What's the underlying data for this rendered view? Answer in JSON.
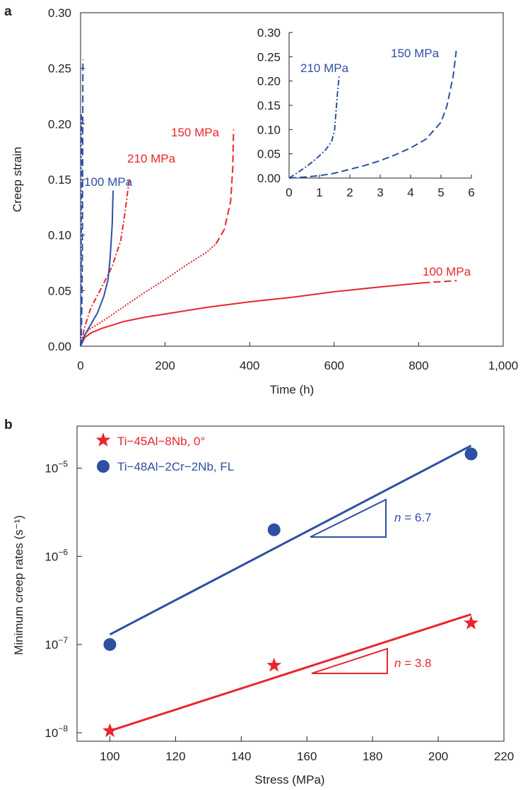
{
  "colors": {
    "red": "#e8262d",
    "blue": "#2e4fa3",
    "axis": "#231f20"
  },
  "chart_data": [
    {
      "panel": "a",
      "type": "line",
      "xlabel": "Time (h)",
      "ylabel": "Creep strain",
      "xlim": [
        0,
        1000
      ],
      "ylim": [
        0,
        0.3
      ],
      "xticks": [
        0,
        200,
        400,
        600,
        800,
        1000
      ],
      "xtick_labels": [
        "0",
        "200",
        "400",
        "600",
        "800",
        "1,000"
      ],
      "yticks": [
        0,
        0.05,
        0.1,
        0.15,
        0.2,
        0.25,
        0.3
      ],
      "ytick_labels": [
        "0.00",
        "0.05",
        "0.10",
        "0.15",
        "0.20",
        "0.25",
        "0.30"
      ],
      "grid": false,
      "series": [
        {
          "name": "100 MPa",
          "color": "red",
          "style": "solid",
          "x": [
            0,
            10,
            25,
            50,
            100,
            150,
            200,
            300,
            400,
            500,
            600,
            700,
            810
          ],
          "y": [
            0,
            0.008,
            0.012,
            0.016,
            0.022,
            0.026,
            0.029,
            0.035,
            0.04,
            0.044,
            0.049,
            0.053,
            0.057
          ]
        },
        {
          "name": "100 MPa",
          "color": "red",
          "style": "dashed",
          "x": [
            810,
            850,
            890
          ],
          "y": [
            0.057,
            0.058,
            0.059
          ]
        },
        {
          "name": "150 MPa",
          "color": "red",
          "style": "dotted",
          "x": [
            0,
            5,
            20,
            50,
            100,
            150,
            200,
            250,
            300,
            320
          ],
          "y": [
            0,
            0.008,
            0.015,
            0.022,
            0.035,
            0.048,
            0.06,
            0.073,
            0.085,
            0.092
          ]
        },
        {
          "name": "150 MPa",
          "color": "red",
          "style": "dashed",
          "x": [
            320,
            340,
            355,
            360,
            362
          ],
          "y": [
            0.092,
            0.105,
            0.13,
            0.16,
            0.195
          ]
        },
        {
          "name": "210 MPa",
          "color": "red",
          "style": "dashdot",
          "x": [
            0,
            10,
            25,
            50,
            75,
            95,
            105,
            115
          ],
          "y": [
            0,
            0.018,
            0.035,
            0.053,
            0.072,
            0.095,
            0.12,
            0.15
          ]
        },
        {
          "name": "100 MPa",
          "color": "blue",
          "style": "solid",
          "x": [
            0,
            10,
            25,
            40,
            55,
            65,
            70,
            75,
            77
          ],
          "y": [
            0,
            0.01,
            0.02,
            0.03,
            0.045,
            0.06,
            0.08,
            0.11,
            0.14
          ]
        },
        {
          "name": "150 MPa",
          "color": "blue",
          "style": "dashed",
          "x": [
            0,
            1,
            2,
            3,
            4,
            4.5,
            5,
            5.5
          ],
          "y": [
            0,
            0.005,
            0.015,
            0.035,
            0.07,
            0.11,
            0.18,
            0.258
          ]
        },
        {
          "name": "210 MPa",
          "color": "blue",
          "style": "dashdot",
          "x": [
            0,
            0.5,
            1,
            1.4,
            1.5,
            1.6,
            1.65
          ],
          "y": [
            0,
            0.025,
            0.05,
            0.08,
            0.12,
            0.17,
            0.21
          ]
        }
      ],
      "labels": [
        {
          "text": "100 MPa",
          "color": "blue"
        },
        {
          "text": "210 MPa",
          "color": "red"
        },
        {
          "text": "150 MPa",
          "color": "red"
        },
        {
          "text": "100 MPa",
          "color": "red"
        }
      ]
    },
    {
      "panel": "a-inset",
      "type": "line",
      "xlim": [
        0,
        6
      ],
      "ylim": [
        0,
        0.3
      ],
      "xticks": [
        0,
        1,
        2,
        3,
        4,
        5,
        6
      ],
      "xtick_labels": [
        "0",
        "1",
        "2",
        "3",
        "4",
        "5",
        "6"
      ],
      "yticks": [
        0,
        0.05,
        0.1,
        0.15,
        0.2,
        0.25,
        0.3
      ],
      "ytick_labels": [
        "0.00",
        "0.05",
        "0.10",
        "0.15",
        "0.20",
        "0.25",
        "0.30"
      ],
      "series": [
        {
          "name": "210 MPa",
          "color": "blue",
          "style": "dashdot",
          "x": [
            0,
            0.3,
            0.6,
            0.9,
            1.2,
            1.4,
            1.5,
            1.55,
            1.6,
            1.65
          ],
          "y": [
            0,
            0.012,
            0.025,
            0.04,
            0.058,
            0.075,
            0.1,
            0.14,
            0.18,
            0.21
          ]
        },
        {
          "name": "150 MPa",
          "color": "blue",
          "style": "dashed",
          "x": [
            0,
            0.5,
            1,
            1.5,
            2,
            2.5,
            3,
            3.5,
            4,
            4.5,
            5,
            5.2,
            5.4,
            5.5
          ],
          "y": [
            0,
            0.002,
            0.005,
            0.01,
            0.018,
            0.026,
            0.036,
            0.048,
            0.062,
            0.08,
            0.115,
            0.15,
            0.21,
            0.262
          ]
        }
      ],
      "labels": [
        {
          "text": "210 MPa",
          "color": "blue"
        },
        {
          "text": "150 MPa",
          "color": "blue"
        }
      ]
    },
    {
      "panel": "b",
      "type": "scatter",
      "xlabel": "Stress (MPa)",
      "ylabel": "Minimum creep rates (s⁻¹)",
      "xlim": [
        90,
        220
      ],
      "ylim": [
        8e-09,
        3e-05
      ],
      "yscale": "log",
      "xticks": [
        100,
        120,
        140,
        160,
        180,
        200,
        220
      ],
      "xtick_labels": [
        "100",
        "120",
        "140",
        "160",
        "180",
        "200",
        "220"
      ],
      "yticks": [
        1e-08,
        1e-07,
        1e-06,
        1e-05
      ],
      "ytick_labels": [
        {
          "base": "10",
          "exp": "−8"
        },
        {
          "base": "10",
          "exp": "−7"
        },
        {
          "base": "10",
          "exp": "−6"
        },
        {
          "base": "10",
          "exp": "−5"
        }
      ],
      "legend_position": "top-left",
      "series": [
        {
          "name": "Ti−45Al−8Nb, 0°",
          "color": "red",
          "marker": "star",
          "x": [
            100,
            150,
            210
          ],
          "y": [
            1.05e-08,
            5.8e-08,
            1.75e-07
          ],
          "fit": {
            "x": [
              100,
              210
            ],
            "y": [
              1.05e-08,
              2.2e-07
            ]
          },
          "slope_label": {
            "var": "n",
            "rest": " = 3.8"
          }
        },
        {
          "name": "Ti−48Al−2Cr−2Nb, FL",
          "color": "blue",
          "marker": "circle",
          "x": [
            100,
            150,
            210
          ],
          "y": [
            1e-07,
            2e-06,
            1.45e-05
          ],
          "fit": {
            "x": [
              100,
              210
            ],
            "y": [
              1.3e-07,
              1.8e-05
            ]
          },
          "slope_label": {
            "var": "n",
            "rest": " = 6.7"
          }
        }
      ]
    }
  ],
  "panel_letters": [
    "a",
    "b"
  ]
}
